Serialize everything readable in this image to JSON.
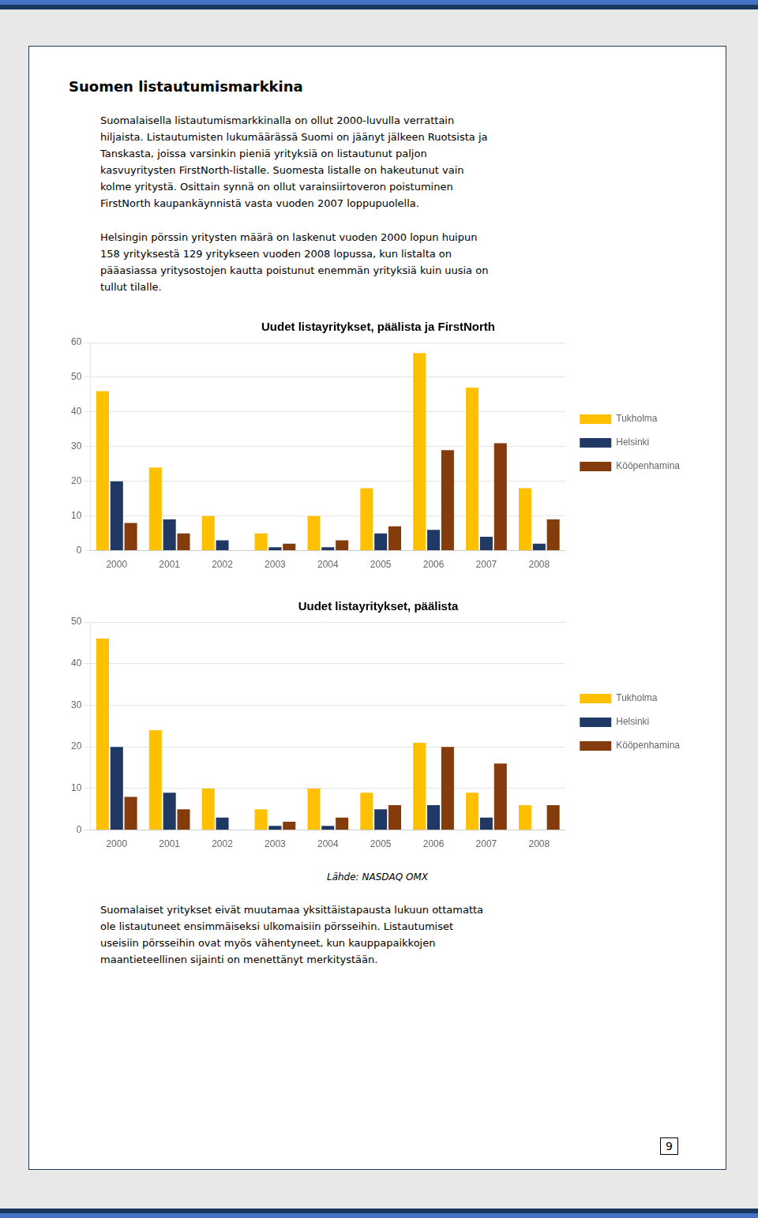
{
  "title": "Suomen listautumismarkkina",
  "paragraphs_before": [
    [
      "Suomalaisella listautumismarkkinalla on ollut 2000-luvulla verrattain",
      "hiljaista. Listautumisten lukumäärässä Suomi on jäänyt jälkeen Ruotsista ja",
      "Tanskasta, joissa varsinkin pieniä yrityksiä on listautunut paljon",
      "kasvuyritysten FirstNorth-listalle. Suomesta listalle on hakeutunut vain",
      "kolme yritystä. Osittain synnä on ollut varainsiirtoveron poistuminen",
      "FirstNorth kaupankäynnistä vasta vuoden 2007 loppupuolella."
    ],
    [
      "Helsingin pörssin yritysten määrä on laskenut vuoden 2000 lopun huipun",
      "158 yrityksestä 129 yritykseen vuoden 2008 lopussa, kun listalta on",
      "pääasiassa yritysostojen kautta poistunut enemmän yrityksiä kuin uusia on",
      "tullut tilalle."
    ]
  ],
  "source": "Lähde: NASDAQ OMX",
  "paragraphs_after": [
    [
      "Suomalaiset yritykset eivät muutamaa yksittäistapausta lukuun ottamatta",
      "ole listautuneet ensimmäiseksi ulkomaisiin pörsseihin. Listautumiset",
      "useisiin pörsseihin ovat myös vähentyneet, kun kauppapaikkojen",
      "maantieteellinen sijainti on menettänyt merkitystään."
    ]
  ],
  "page_number": 9,
  "chart_data": [
    {
      "type": "bar",
      "title": "Uudet listayritykset, päälista ja FirstNorth",
      "categories": [
        "2000",
        "2001",
        "2002",
        "2003",
        "2004",
        "2005",
        "2006",
        "2007",
        "2008"
      ],
      "series": [
        {
          "name": "Tukholma",
          "color": "#FFC000",
          "values": [
            46,
            24,
            10,
            5,
            10,
            18,
            57,
            47,
            18
          ]
        },
        {
          "name": "Helsinki",
          "color": "#1F3864",
          "values": [
            20,
            9,
            3,
            1,
            1,
            5,
            6,
            4,
            2
          ]
        },
        {
          "name": "Kööpenhamina",
          "color": "#843C0C",
          "values": [
            8,
            5,
            0,
            2,
            3,
            7,
            29,
            31,
            9
          ]
        }
      ],
      "ylim": [
        0,
        60
      ],
      "yticks": [
        0,
        10,
        20,
        30,
        40,
        50,
        60
      ],
      "grid": true,
      "legend": "right"
    },
    {
      "type": "bar",
      "title": "Uudet listayritykset, päälista",
      "categories": [
        "2000",
        "2001",
        "2002",
        "2003",
        "2004",
        "2005",
        "2006",
        "2007",
        "2008"
      ],
      "series": [
        {
          "name": "Tukholma",
          "color": "#FFC000",
          "values": [
            46,
            24,
            10,
            5,
            10,
            9,
            21,
            9,
            6
          ]
        },
        {
          "name": "Helsinki",
          "color": "#1F3864",
          "values": [
            20,
            9,
            3,
            1,
            1,
            5,
            6,
            3,
            0
          ]
        },
        {
          "name": "Kööpenhamina",
          "color": "#843C0C",
          "values": [
            8,
            5,
            0,
            2,
            3,
            6,
            20,
            16,
            6
          ]
        }
      ],
      "ylim": [
        0,
        50
      ],
      "yticks": [
        0,
        10,
        20,
        30,
        40,
        50
      ],
      "grid": true,
      "legend": "right"
    }
  ]
}
